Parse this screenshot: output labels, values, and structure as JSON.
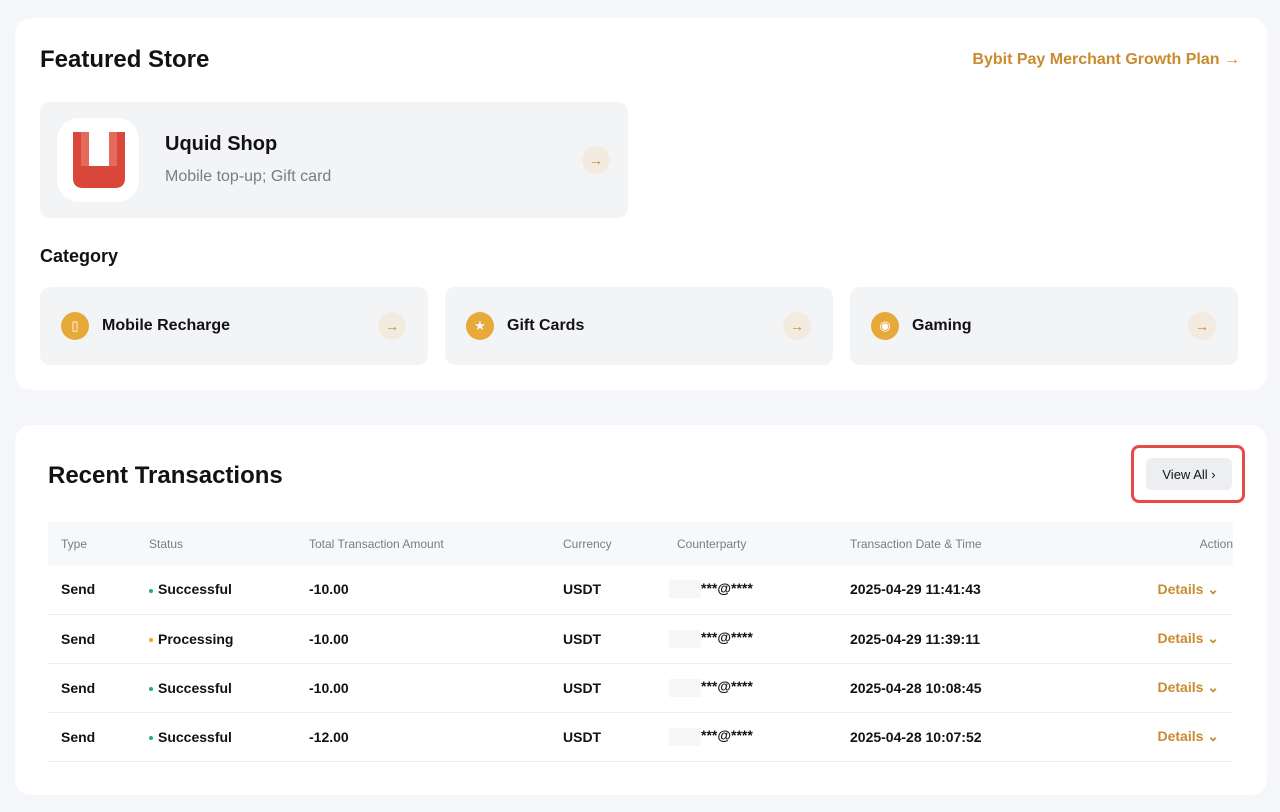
{
  "featured": {
    "title": "Featured Store",
    "plan_link": "Bybit Pay Merchant Growth Plan →",
    "store": {
      "name": "Uquid Shop",
      "desc": "Mobile top-up; Gift card"
    },
    "category_title": "Category",
    "categories": [
      {
        "label": "Mobile Recharge",
        "icon": "phone-icon"
      },
      {
        "label": "Gift Cards",
        "icon": "gift-icon"
      },
      {
        "label": "Gaming",
        "icon": "gamepad-icon"
      }
    ]
  },
  "recent": {
    "title": "Recent Transactions",
    "view_all": "View All ›",
    "columns": [
      "Type",
      "Status",
      "Total Transaction Amount",
      "Currency",
      "Counterparty",
      "Transaction Date & Time",
      "Action"
    ],
    "rows": [
      {
        "type": "Send",
        "status": "Successful",
        "status_color": "#20b26c",
        "amount": "-10.00",
        "currency": "USDT",
        "counterparty": "***@****",
        "datetime": "2025-04-29 11:41:43",
        "action": "Details ⌄"
      },
      {
        "type": "Send",
        "status": "Processing",
        "status_color": "#f7a600",
        "amount": "-10.00",
        "currency": "USDT",
        "counterparty": "***@****",
        "datetime": "2025-04-29 11:39:11",
        "action": "Details ⌄"
      },
      {
        "type": "Send",
        "status": "Successful",
        "status_color": "#20b26c",
        "amount": "-10.00",
        "currency": "USDT",
        "counterparty": "***@****",
        "datetime": "2025-04-28 10:08:45",
        "action": "Details ⌄"
      },
      {
        "type": "Send",
        "status": "Successful",
        "status_color": "#20b26c",
        "amount": "-12.00",
        "currency": "USDT",
        "counterparty": "***@****",
        "datetime": "2025-04-28 10:07:52",
        "action": "Details ⌄"
      }
    ]
  }
}
